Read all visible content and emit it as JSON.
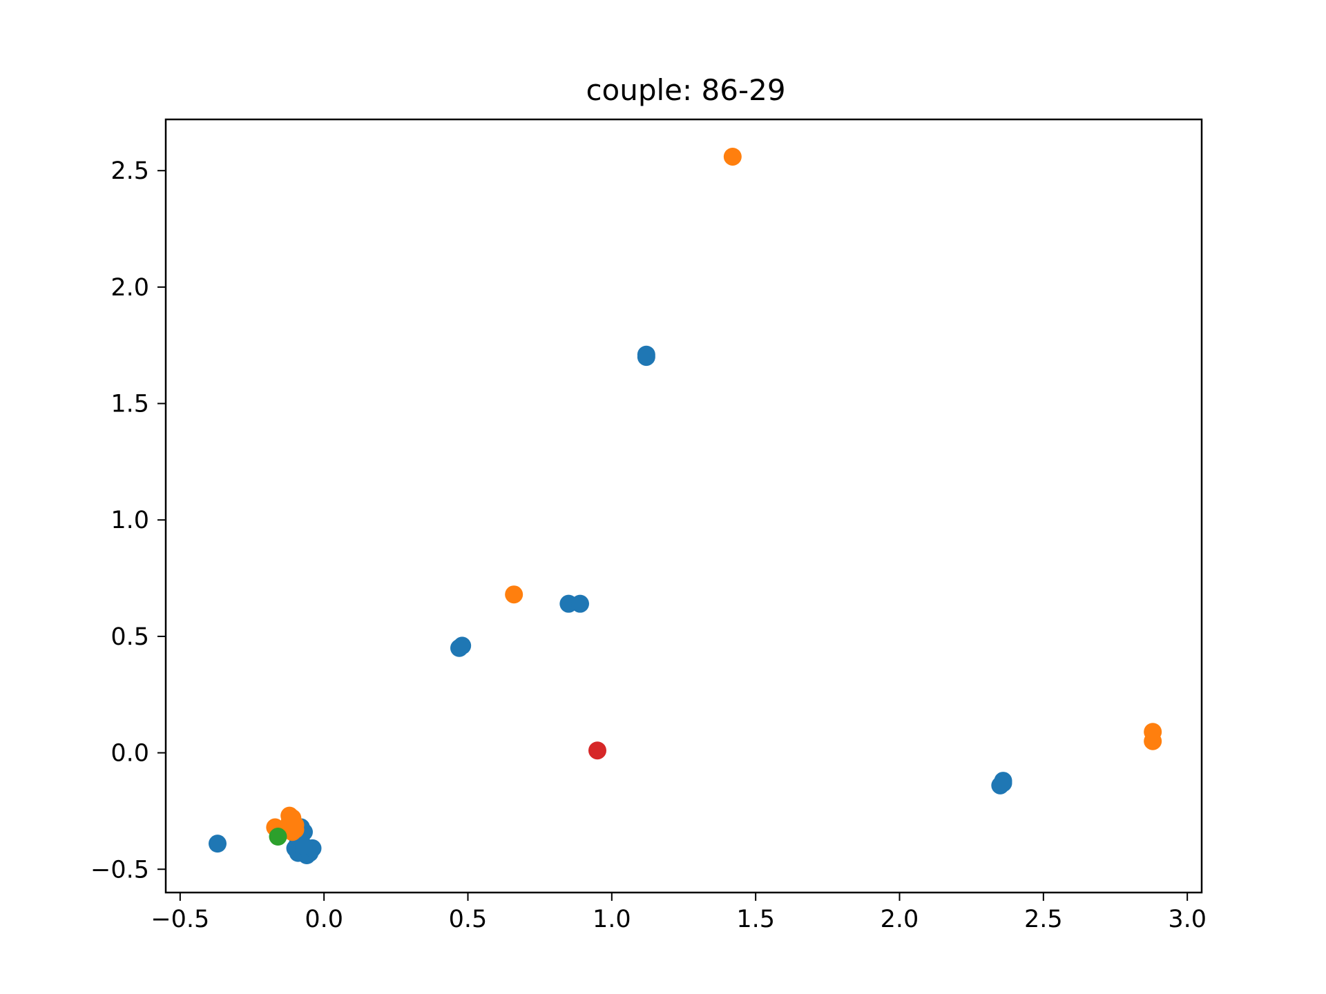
{
  "chart_data": {
    "type": "scatter",
    "title": "couple: 86-29",
    "xlabel": "",
    "ylabel": "",
    "xlim": [
      -0.55,
      3.05
    ],
    "ylim": [
      -0.6,
      2.72
    ],
    "xticks": [
      -0.5,
      0.0,
      0.5,
      1.0,
      1.5,
      2.0,
      2.5,
      3.0
    ],
    "yticks": [
      -0.5,
      0.0,
      0.5,
      1.0,
      1.5,
      2.0,
      2.5
    ],
    "xtick_labels": [
      "−0.5",
      "0.0",
      "0.5",
      "1.0",
      "1.5",
      "2.0",
      "2.5",
      "3.0"
    ],
    "ytick_labels": [
      "−0.5",
      "0.0",
      "0.5",
      "1.0",
      "1.5",
      "2.0",
      "2.5"
    ],
    "grid": false,
    "series": [
      {
        "color": "#1f77b4",
        "points": [
          [
            -0.37,
            -0.39
          ],
          [
            -0.08,
            -0.32
          ],
          [
            -0.07,
            -0.34
          ],
          [
            -0.08,
            -0.36
          ],
          [
            -0.09,
            -0.38
          ],
          [
            -0.1,
            -0.41
          ],
          [
            -0.09,
            -0.43
          ],
          [
            -0.07,
            -0.42
          ],
          [
            -0.06,
            -0.44
          ],
          [
            -0.05,
            -0.43
          ],
          [
            -0.04,
            -0.41
          ],
          [
            -0.07,
            -0.4
          ],
          [
            0.47,
            0.45
          ],
          [
            0.48,
            0.46
          ],
          [
            0.85,
            0.64
          ],
          [
            0.89,
            0.64
          ],
          [
            1.12,
            1.7
          ],
          [
            1.12,
            1.71
          ],
          [
            2.36,
            -0.12
          ],
          [
            2.35,
            -0.14
          ],
          [
            2.36,
            -0.13
          ]
        ]
      },
      {
        "color": "#ff7f0e",
        "points": [
          [
            -0.17,
            -0.32
          ],
          [
            -0.12,
            -0.27
          ],
          [
            -0.11,
            -0.28
          ],
          [
            -0.12,
            -0.3
          ],
          [
            -0.1,
            -0.33
          ],
          [
            -0.11,
            -0.34
          ],
          [
            -0.1,
            -0.31
          ],
          [
            0.66,
            0.68
          ],
          [
            1.42,
            2.56
          ],
          [
            2.88,
            0.09
          ],
          [
            2.88,
            0.05
          ]
        ]
      },
      {
        "color": "#2ca02c",
        "points": [
          [
            -0.16,
            -0.36
          ]
        ]
      },
      {
        "color": "#d62728",
        "points": [
          [
            0.95,
            0.01
          ]
        ]
      }
    ]
  }
}
